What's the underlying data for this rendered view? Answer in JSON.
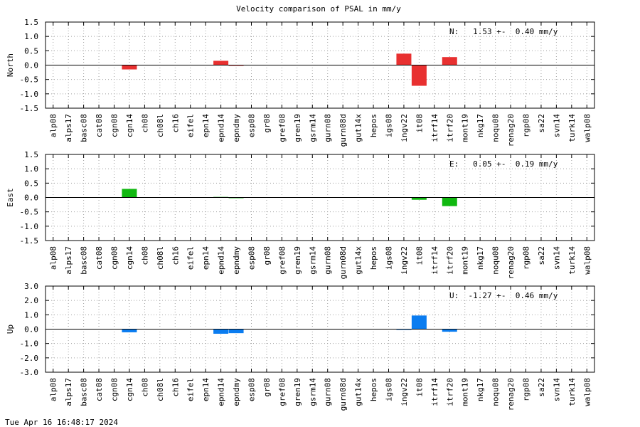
{
  "title": "Velocity comparison of PSAL in mm/y",
  "timestamp": "Tue Apr 16 16:48:17 2024",
  "chart_data": {
    "type": "bar",
    "title": "Velocity comparison of PSAL in mm/y",
    "grid": true,
    "categories": [
      "alp08",
      "alps17",
      "basc08",
      "cat08",
      "cgn08",
      "cgn14",
      "ch08",
      "ch08l",
      "ch16",
      "eifel",
      "epn14",
      "epnd14",
      "epndmy",
      "esp08",
      "gr08",
      "gref08",
      "gren19",
      "gsrm14",
      "gurn08",
      "gurn08d",
      "gut14x",
      "hepos",
      "igs08",
      "ingv22",
      "it08",
      "itrf14",
      "itrf20",
      "mont19",
      "nkg17",
      "noqu08",
      "renag20",
      "rgp08",
      "sa22",
      "svn14",
      "turk14",
      "walp08"
    ],
    "panels": [
      {
        "ylabel": "North",
        "color": "#e83030",
        "ylim": [
          -1.5,
          1.5
        ],
        "yticks": [
          "1.5",
          "1.0",
          "0.5",
          "0.0",
          "-0.5",
          "-1.0",
          "-1.5"
        ],
        "stat_text": "N:   1.53 +-  0.40 mm/y",
        "values": [
          0,
          0,
          0,
          0,
          0,
          -0.15,
          0,
          0,
          0,
          0,
          0,
          0.15,
          -0.02,
          0,
          0,
          0,
          0,
          0,
          0,
          0,
          0,
          0,
          0,
          0.4,
          -0.72,
          0,
          0.28,
          0,
          0,
          0,
          0,
          0,
          0,
          0,
          0,
          0
        ]
      },
      {
        "ylabel": "East",
        "color": "#10b810",
        "ylim": [
          -1.5,
          1.5
        ],
        "yticks": [
          "1.5",
          "1.0",
          "0.5",
          "0.0",
          "-0.5",
          "-1.0",
          "-1.5"
        ],
        "stat_text": "E:   0.05 +-  0.19 mm/y",
        "values": [
          0,
          0,
          0,
          0,
          0,
          0.3,
          0,
          0,
          0,
          0,
          0,
          0.02,
          -0.02,
          0,
          0,
          0,
          0,
          0,
          0,
          0,
          0,
          0,
          0,
          0,
          -0.08,
          0,
          -0.3,
          0,
          0,
          0,
          0,
          0,
          0,
          0,
          0,
          0
        ]
      },
      {
        "ylabel": "Up",
        "color": "#0a7cf0",
        "ylim": [
          -3.0,
          3.0
        ],
        "yticks": [
          "3.0",
          "2.0",
          "1.0",
          "0.0",
          "-1.0",
          "-2.0",
          "-3.0"
        ],
        "stat_text": "U:  -1.27 +-  0.46 mm/y",
        "values": [
          0,
          0,
          0,
          0,
          0,
          -0.22,
          0,
          0,
          0,
          0,
          0,
          -0.32,
          -0.28,
          0,
          0,
          0,
          0,
          0,
          0,
          0,
          0,
          0,
          0,
          -0.05,
          0.95,
          0,
          -0.18,
          0,
          0,
          0,
          0,
          0,
          0,
          0,
          0,
          0
        ]
      }
    ]
  }
}
